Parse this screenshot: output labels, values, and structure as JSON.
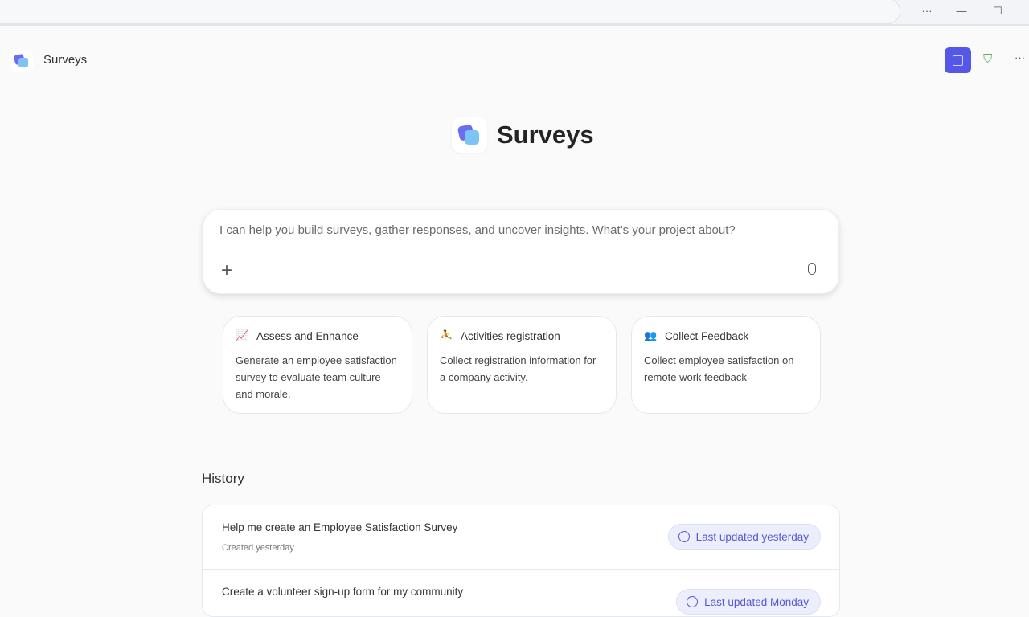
{
  "window": {
    "more": "···",
    "minimize": "—",
    "maximize": "☐"
  },
  "app": {
    "title": "Surveys",
    "hero_title": "Surveys",
    "accent": "#5557e8"
  },
  "prompt": {
    "placeholder": "I can help you build surveys, gather responses, and uncover insights. What’s your project about?",
    "add": "+"
  },
  "cards": [
    {
      "title": "Assess and Enhance",
      "icon": "chart-trend-icon",
      "desc": "Generate an employee satisfaction survey to evaluate team culture and morale."
    },
    {
      "title": "Activities registration",
      "icon": "person-activity-icon",
      "desc": "Collect registration information for a company activity."
    },
    {
      "title": "Collect Feedback",
      "icon": "people-feedback-icon",
      "desc": "Collect employee satisfaction on remote work feedback"
    }
  ],
  "history": {
    "heading": "History",
    "items": [
      {
        "title": "Help me create an Employee Satisfaction Survey",
        "sub": "Created yesterday",
        "badge": "Last updated yesterday"
      },
      {
        "title": "Create a volunteer sign-up form for my community",
        "sub": "",
        "badge": "Last updated Monday"
      }
    ]
  }
}
